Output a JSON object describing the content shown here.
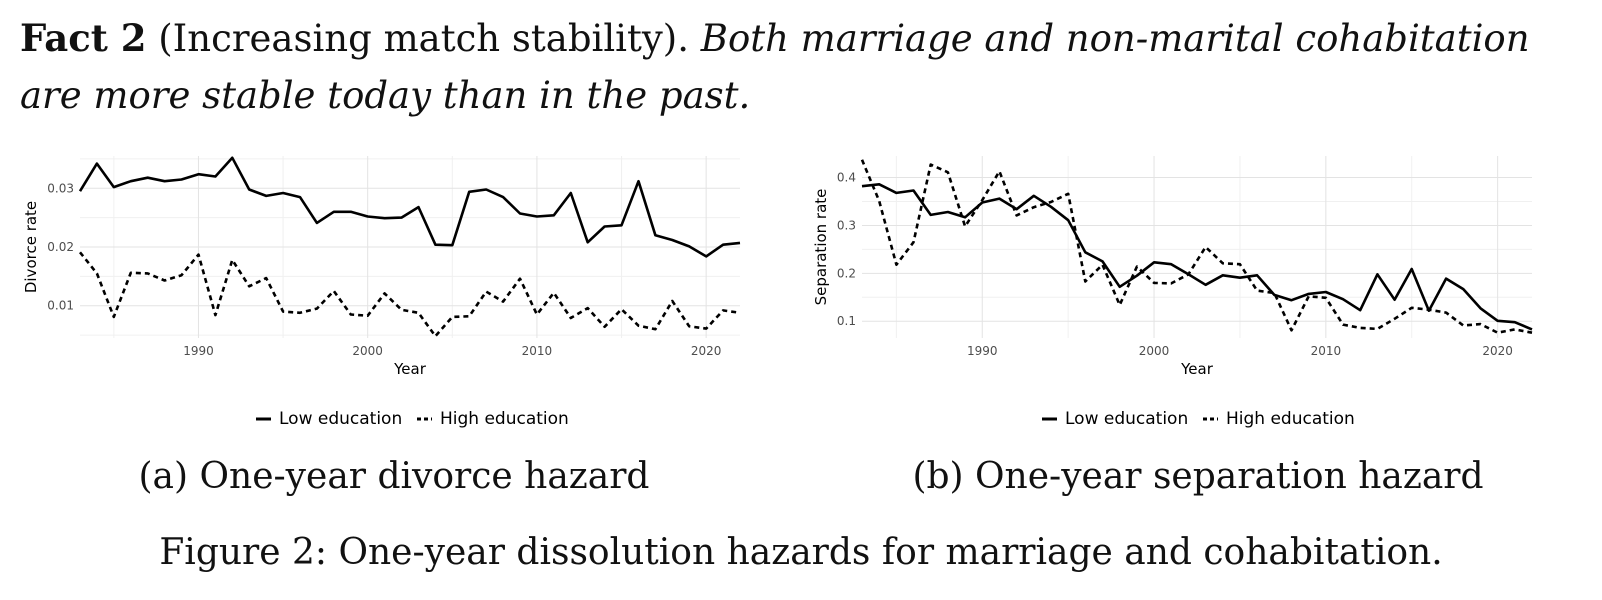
{
  "fact": {
    "label": "Fact 2",
    "title": "(Increasing match stability).",
    "body": "Both marriage and non-marital cohabitation are more stable today than in the past."
  },
  "subcaptions": {
    "a": "(a) One-year divorce hazard",
    "b": "(b) One-year separation hazard"
  },
  "caption": "Figure 2: One-year dissolution hazards for marriage and cohabitation.",
  "chart_data": [
    {
      "type": "line",
      "xlabel": "Year",
      "ylabel": "Divorce rate",
      "xlim": [
        1983,
        2022
      ],
      "ylim": [
        0.0045,
        0.0355
      ],
      "xticks": [
        1990,
        2000,
        2010,
        2020
      ],
      "xtick_labels": [
        "1990",
        "2000",
        "2010",
        "2020"
      ],
      "yticks": [
        0.01,
        0.02,
        0.03
      ],
      "ytick_labels": [
        "0.01",
        "0.02",
        "0.03"
      ],
      "grid": true,
      "legend": "bottom",
      "x": [
        1983,
        1984,
        1985,
        1986,
        1987,
        1988,
        1989,
        1990,
        1991,
        1992,
        1993,
        1994,
        1995,
        1996,
        1997,
        1998,
        1999,
        2000,
        2001,
        2002,
        2003,
        2004,
        2005,
        2006,
        2007,
        2008,
        2009,
        2010,
        2011,
        2012,
        2013,
        2014,
        2015,
        2016,
        2017,
        2018,
        2019,
        2020,
        2021,
        2022
      ],
      "series": [
        {
          "name": "Low education",
          "style": "solid",
          "color": "#000000",
          "values": [
            0.0295,
            0.0342,
            0.0302,
            0.0312,
            0.0318,
            0.0312,
            0.0315,
            0.0324,
            0.032,
            0.0352,
            0.0298,
            0.0287,
            0.0292,
            0.0285,
            0.0241,
            0.026,
            0.026,
            0.0252,
            0.0249,
            0.025,
            0.0268,
            0.0204,
            0.0203,
            0.0294,
            0.0298,
            0.0285,
            0.0257,
            0.0252,
            0.0254,
            0.0292,
            0.0208,
            0.0235,
            0.0237,
            0.0312,
            0.022,
            0.0212,
            0.0201,
            0.0184,
            0.0204,
            0.0207
          ]
        },
        {
          "name": "High education",
          "style": "dashed",
          "color": "#000000",
          "values": [
            0.0191,
            0.0155,
            0.0081,
            0.0156,
            0.0155,
            0.0143,
            0.0152,
            0.0187,
            0.0084,
            0.0178,
            0.0133,
            0.0147,
            0.009,
            0.0088,
            0.0095,
            0.0125,
            0.0085,
            0.0083,
            0.0121,
            0.0093,
            0.0088,
            0.0048,
            0.0081,
            0.0082,
            0.0124,
            0.0107,
            0.0146,
            0.0085,
            0.0122,
            0.0079,
            0.0096,
            0.0064,
            0.0094,
            0.0066,
            0.006,
            0.0108,
            0.0065,
            0.0061,
            0.0092,
            0.0088
          ]
        }
      ]
    },
    {
      "type": "line",
      "xlabel": "Year",
      "ylabel": "Separation rate",
      "xlim": [
        1983,
        2022
      ],
      "ylim": [
        0.065,
        0.445
      ],
      "xticks": [
        1990,
        2000,
        2010,
        2020
      ],
      "xtick_labels": [
        "1990",
        "2000",
        "2010",
        "2020"
      ],
      "yticks": [
        0.1,
        0.2,
        0.3,
        0.4
      ],
      "ytick_labels": [
        "0.1",
        "0.2",
        "0.3",
        "0.4"
      ],
      "grid": true,
      "legend": "bottom",
      "x": [
        1983,
        1984,
        1985,
        1986,
        1987,
        1988,
        1989,
        1990,
        1991,
        1992,
        1993,
        1994,
        1995,
        1996,
        1997,
        1998,
        1999,
        2000,
        2001,
        2002,
        2003,
        2004,
        2005,
        2006,
        2007,
        2008,
        2009,
        2010,
        2011,
        2012,
        2013,
        2014,
        2015,
        2016,
        2017,
        2018,
        2019,
        2020,
        2021,
        2022
      ],
      "series": [
        {
          "name": "Low education",
          "style": "solid",
          "color": "#000000",
          "values": [
            0.382,
            0.386,
            0.368,
            0.373,
            0.322,
            0.328,
            0.317,
            0.348,
            0.356,
            0.334,
            0.362,
            0.339,
            0.311,
            0.244,
            0.225,
            0.172,
            0.195,
            0.223,
            0.219,
            0.198,
            0.176,
            0.196,
            0.191,
            0.196,
            0.155,
            0.144,
            0.157,
            0.161,
            0.146,
            0.123,
            0.198,
            0.145,
            0.209,
            0.122,
            0.189,
            0.167,
            0.127,
            0.101,
            0.098,
            0.083
          ]
        },
        {
          "name": "High education",
          "style": "dashed",
          "color": "#000000",
          "values": [
            0.437,
            0.351,
            0.218,
            0.265,
            0.427,
            0.411,
            0.298,
            0.353,
            0.413,
            0.321,
            0.338,
            0.349,
            0.366,
            0.183,
            0.218,
            0.134,
            0.214,
            0.18,
            0.179,
            0.198,
            0.255,
            0.221,
            0.219,
            0.164,
            0.159,
            0.081,
            0.152,
            0.149,
            0.093,
            0.086,
            0.084,
            0.105,
            0.128,
            0.124,
            0.118,
            0.091,
            0.094,
            0.076,
            0.083,
            0.076
          ]
        }
      ]
    }
  ]
}
